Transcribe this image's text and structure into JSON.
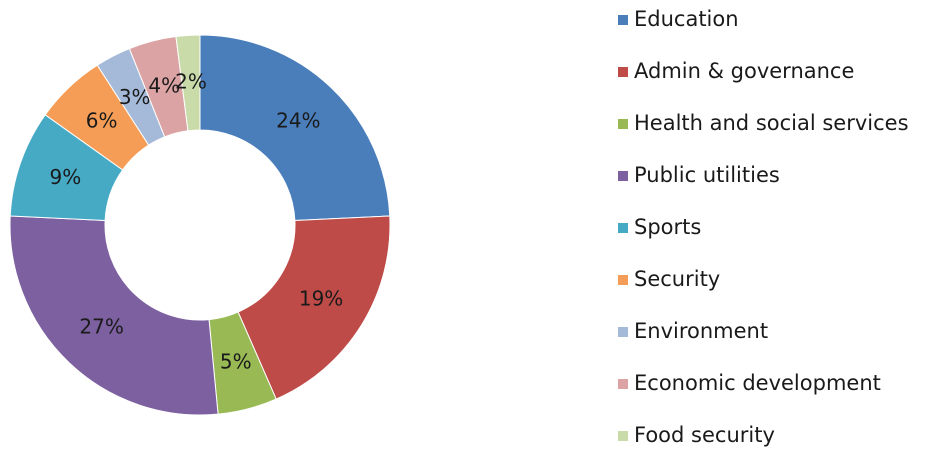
{
  "chart_data": {
    "type": "donut",
    "categories": [
      "Education",
      "Admin & governance",
      "Health and social services",
      "Public utilities",
      "Sports",
      "Security",
      "Environment",
      "Economic development",
      "Food security"
    ],
    "values": [
      24,
      19,
      5,
      27,
      9,
      6,
      3,
      4,
      2
    ],
    "value_labels": [
      "24%",
      "19%",
      "5%",
      "27%",
      "9%",
      "6%",
      "3%",
      "4%",
      "2%"
    ],
    "colors": [
      "#4a7ebb",
      "#be4b48",
      "#98b954",
      "#7d60a0",
      "#46aac5",
      "#f59d56",
      "#a5b9d8",
      "#dba3a3",
      "#c9dba8"
    ],
    "legend": "right"
  }
}
